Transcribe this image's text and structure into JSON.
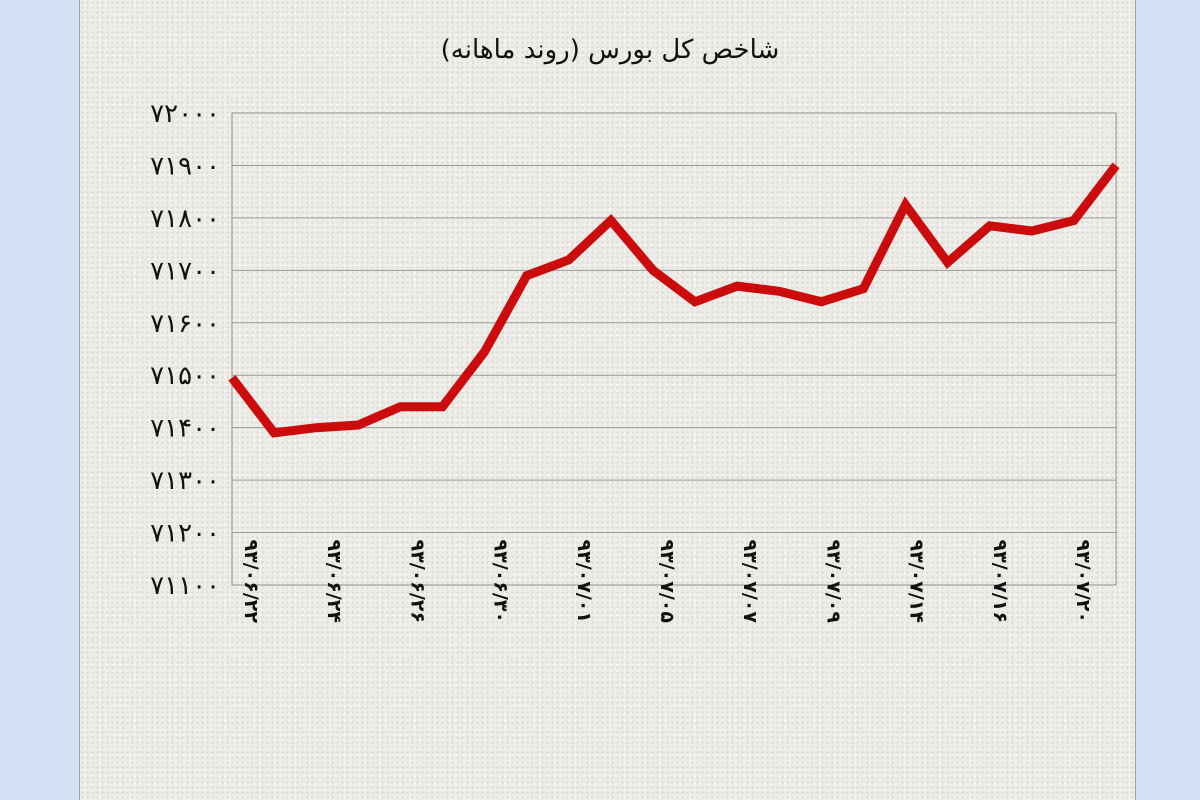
{
  "chart_data": {
    "type": "line",
    "title": "شاخص کل بورس (روند ماهانه)",
    "xlabel": "",
    "ylabel": "",
    "ylim": [
      71100,
      72000
    ],
    "y_ticks": [
      72000,
      71900,
      71800,
      71700,
      71600,
      71500,
      71400,
      71300,
      71200,
      71100
    ],
    "y_tick_labels": [
      "۷۲۰۰۰",
      "۷۱۹۰۰",
      "۷۱۸۰۰",
      "۷۱۷۰۰",
      "۷۱۶۰۰",
      "۷۱۵۰۰",
      "۷۱۴۰۰",
      "۷۱۳۰۰",
      "۷۱۲۰۰",
      "۷۱۱۰۰"
    ],
    "grid": true,
    "legend": "none",
    "line_color": "#cc0c0c",
    "x_tick_labels": [
      "۹۳/۰۶/۲۲",
      "۹۳/۰۶/۲۴",
      "۹۳/۰۶/۲۶",
      "۹۳/۰۶/۳۰",
      "۹۳/۰۷/۰۱",
      "۹۳/۰۷/۰۵",
      "۹۳/۰۷/۰۷",
      "۹۳/۰۷/۰۹",
      "۹۳/۰۷/۱۴",
      "۹۳/۰۷/۱۶",
      "۹۳/۰۷/۲۰"
    ],
    "series": [
      {
        "values": [
          71495,
          71390,
          71400,
          71405,
          71440,
          71440,
          71545,
          71690,
          71720,
          71795,
          71700,
          71640,
          71670,
          71660,
          71640,
          71665,
          71825,
          71715,
          71785,
          71775,
          71795,
          71900
        ]
      }
    ]
  }
}
